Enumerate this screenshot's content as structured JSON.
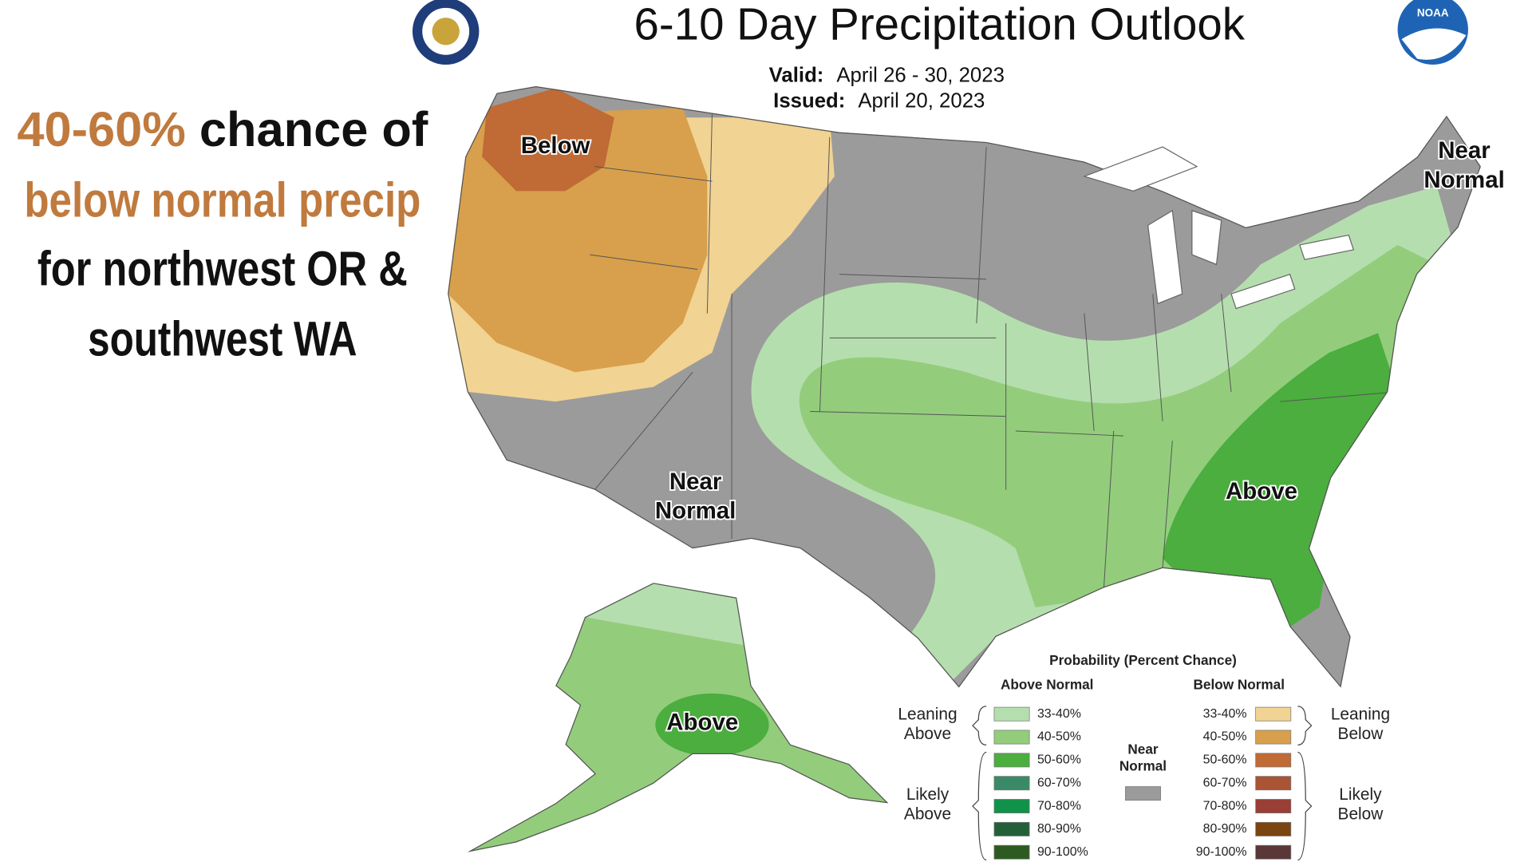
{
  "header": {
    "title": "6-10 Day Precipitation Outlook",
    "valid_label": "Valid:",
    "valid_dates": "April 26 - 30, 2023",
    "issued_label": "Issued:",
    "issued_date": "April 20, 2023",
    "right_logo": "NOAA"
  },
  "annotation": {
    "highlight_color": "#c07a3e",
    "line1_highlight": "40-60%",
    "line1_rest": "chance of",
    "line2": "below normal precip",
    "line3": "for northwest OR &",
    "line4": "southwest WA"
  },
  "map_labels": [
    {
      "lines": [
        "Below"
      ]
    },
    {
      "lines": [
        "Near",
        "Normal"
      ]
    },
    {
      "lines": [
        "Near",
        "Normal"
      ]
    },
    {
      "lines": [
        "Above"
      ]
    },
    {
      "lines": [
        "Above"
      ]
    }
  ],
  "legend": {
    "title": "Probability (Percent Chance)",
    "above_heading": "Above Normal",
    "below_heading": "Below Normal",
    "near_normal_lines": [
      "Near",
      "Normal"
    ],
    "near_normal_color": "#9b9b9b",
    "leaning_above_lines": [
      "Leaning",
      "Above"
    ],
    "likely_above_lines": [
      "Likely",
      "Above"
    ],
    "leaning_below_lines": [
      "Leaning",
      "Below"
    ],
    "likely_below_lines": [
      "Likely",
      "Below"
    ],
    "above": [
      {
        "label": "33-40%",
        "color": "#b5deae"
      },
      {
        "label": "40-50%",
        "color": "#93cd7c"
      },
      {
        "label": "50-60%",
        "color": "#4bae3f"
      },
      {
        "label": "60-70%",
        "color": "#3a8a68"
      },
      {
        "label": "70-80%",
        "color": "#11924a"
      },
      {
        "label": "80-90%",
        "color": "#23603a"
      },
      {
        "label": "90-100%",
        "color": "#2d5a21"
      }
    ],
    "below": [
      {
        "label": "33-40%",
        "color": "#f1d393"
      },
      {
        "label": "40-50%",
        "color": "#d8a04c"
      },
      {
        "label": "50-60%",
        "color": "#c06a35"
      },
      {
        "label": "60-70%",
        "color": "#a95435"
      },
      {
        "label": "70-80%",
        "color": "#9a3f36"
      },
      {
        "label": "80-90%",
        "color": "#7a4511"
      },
      {
        "label": "90-100%",
        "color": "#5a3838"
      }
    ]
  }
}
